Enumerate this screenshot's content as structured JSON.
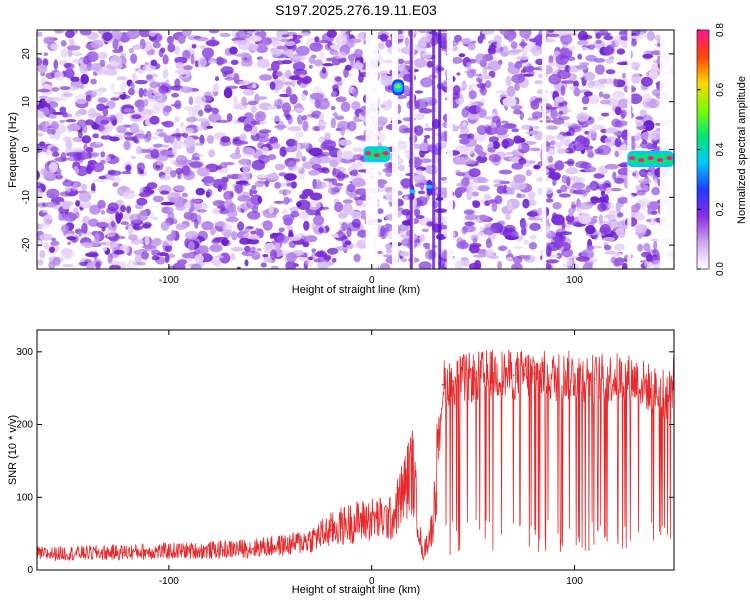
{
  "figure_title": "S197.2025.276.19.11.E03",
  "chart_data": [
    {
      "type": "heatmap",
      "title": "S197.2025.276.19.11.E03",
      "xlabel": "Height of straight line (km)",
      "ylabel": "Frequency (Hz)",
      "xlim": [
        -165,
        149
      ],
      "ylim": [
        -25,
        25
      ],
      "xticks": [
        -100,
        0,
        100
      ],
      "xtick_labels": [
        "-100",
        "0",
        "100"
      ],
      "yticks": [
        -20,
        -10,
        0,
        10,
        20
      ],
      "ytick_labels": [
        "-20",
        "-10",
        "0",
        "10",
        "20"
      ],
      "colorbar": {
        "label": "Normalized spectral amplitude",
        "range": [
          0,
          0.8
        ],
        "ticks": [
          0,
          0.2,
          0.4,
          0.6,
          0.8
        ],
        "tick_labels": [
          "0.0",
          "0.2",
          "0.4",
          "0.6",
          "0.8"
        ],
        "colors": [
          "#ffffff",
          "#cfa6f0",
          "#8a2be2",
          "#1e3cff",
          "#00c8ff",
          "#00e676",
          "#7cfc00",
          "#ffd700",
          "#ff4500",
          "#ff1493"
        ]
      },
      "blank_gaps_km": [
        [
          -3,
          3
        ],
        [
          10,
          13
        ],
        [
          19,
          21
        ],
        [
          37,
          40
        ],
        [
          84,
          86
        ],
        [
          126,
          128
        ],
        [
          142,
          149
        ]
      ],
      "bright_features": [
        {
          "x_range_km": [
            -4,
            9
          ],
          "freq_hz": -1,
          "peak": 0.7
        },
        {
          "x_range_km": [
            10,
            16
          ],
          "freq_hz": 13,
          "peak": 0.5
        },
        {
          "x_range_km": [
            27,
            30
          ],
          "freq_hz": -8,
          "peak": 0.3
        },
        {
          "x_range_km": [
            19,
            21
          ],
          "freq_hz": -9,
          "peak": 0.2
        },
        {
          "x_range_km": [
            126,
            149
          ],
          "freq_hz": -2,
          "peak": 0.7
        }
      ]
    },
    {
      "type": "line",
      "title": "",
      "xlabel": "Height of straight line (km)",
      "ylabel": "SNR (10 * v/v)",
      "xlim": [
        -165,
        149
      ],
      "ylim": [
        0,
        330
      ],
      "xticks": [
        -100,
        0,
        100
      ],
      "xtick_labels": [
        "-100",
        "0",
        "100"
      ],
      "yticks": [
        0,
        100,
        200,
        300
      ],
      "ytick_labels": [
        "0",
        "100",
        "200",
        "300"
      ],
      "color": "#e8282a",
      "series": [
        {
          "name": "SNR",
          "x": [
            -165,
            -130,
            -100,
            -80,
            -60,
            -40,
            -30,
            -20,
            -10,
            0,
            10,
            20,
            25,
            30,
            35,
            40,
            50,
            60,
            70,
            80,
            90,
            100,
            110,
            120,
            130,
            140,
            145,
            149
          ],
          "y": [
            22,
            24,
            26,
            27,
            30,
            35,
            42,
            55,
            65,
            70,
            70,
            140,
            20,
            60,
            255,
            260,
            265,
            270,
            268,
            270,
            265,
            268,
            262,
            265,
            262,
            245,
            240,
            260
          ]
        }
      ]
    }
  ]
}
